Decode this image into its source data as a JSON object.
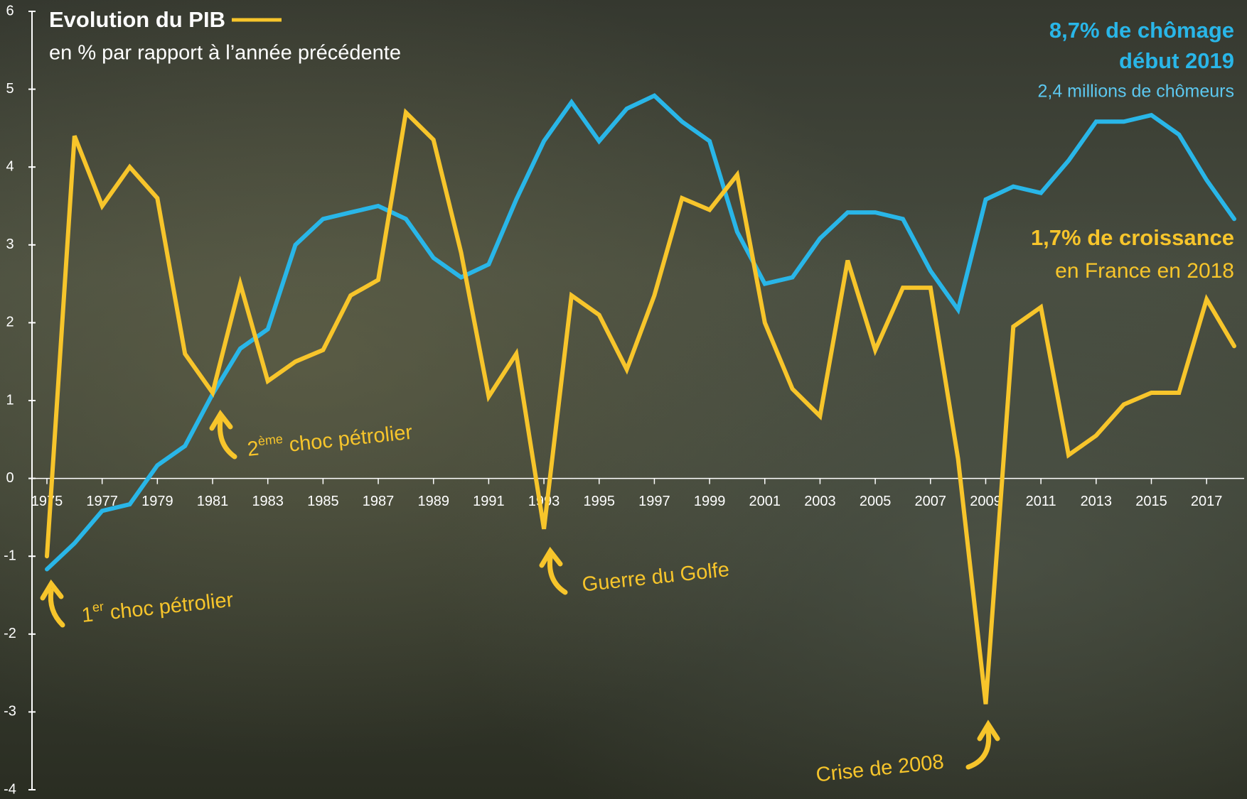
{
  "chart_data": {
    "type": "line",
    "title": "Evolution du PIB",
    "subtitle": "en % par rapport à l’année précédente",
    "x": [
      1975,
      1976,
      1977,
      1978,
      1979,
      1980,
      1981,
      1982,
      1983,
      1984,
      1985,
      1986,
      1987,
      1988,
      1989,
      1990,
      1991,
      1992,
      1993,
      1994,
      1995,
      1996,
      1997,
      1998,
      1999,
      2000,
      2001,
      2002,
      2003,
      2004,
      2005,
      2006,
      2007,
      2008,
      2009,
      2010,
      2011,
      2012,
      2013,
      2014,
      2015,
      2016,
      2017,
      2018
    ],
    "xlim": [
      1975,
      2018
    ],
    "xticks": [
      1975,
      1977,
      1979,
      1981,
      1983,
      1985,
      1987,
      1989,
      1991,
      1993,
      1995,
      1997,
      1999,
      2001,
      2003,
      2005,
      2007,
      2009,
      2011,
      2013,
      2015,
      2017
    ],
    "ylim": [
      -4,
      6
    ],
    "yticks": [
      -4,
      -3,
      -2,
      -1,
      0,
      1,
      2,
      3,
      4,
      5,
      6
    ],
    "y2lim": [
      0,
      12
    ],
    "series": [
      {
        "color": "#f7c52b",
        "values": [
          -1.0,
          4.4,
          3.5,
          4.0,
          3.6,
          1.6,
          1.1,
          2.5,
          1.25,
          1.5,
          1.65,
          2.35,
          2.55,
          4.7,
          4.35,
          2.9,
          1.05,
          1.6,
          -0.65,
          2.35,
          2.1,
          1.4,
          2.35,
          3.6,
          3.45,
          3.9,
          2.0,
          1.15,
          0.8,
          2.8,
          1.65,
          2.45,
          2.45,
          0.25,
          -2.9,
          1.95,
          2.2,
          0.3,
          0.55,
          0.95,
          1.1,
          1.1,
          2.3,
          1.7
        ]
      },
      {
        "color": "#29b6e8",
        "axis": "y2",
        "values": [
          3.4,
          3.8,
          4.3,
          4.4,
          5.0,
          5.3,
          6.1,
          6.8,
          7.1,
          8.4,
          8.8,
          8.9,
          9.0,
          8.8,
          8.2,
          7.9,
          8.1,
          9.1,
          10.0,
          10.6,
          10.0,
          10.5,
          10.7,
          10.3,
          10.0,
          8.6,
          7.8,
          7.9,
          8.5,
          8.9,
          8.9,
          8.8,
          8.0,
          7.4,
          9.1,
          9.3,
          9.2,
          9.7,
          10.3,
          10.3,
          10.4,
          10.1,
          9.4,
          8.8
        ]
      }
    ],
    "annotations": [
      {
        "base": "1",
        "sup": "er",
        "text": " choc pétrolier"
      },
      {
        "base": "2",
        "sup": "ème",
        "text": " choc pétrolier"
      },
      {
        "text": "Guerre du Golfe"
      },
      {
        "text": "Crise de 2008"
      }
    ],
    "unemployment_note": [
      "8,7% de chômage",
      "début 2019",
      "2,4 millions de chômeurs"
    ],
    "growth_note": [
      "1,7% de croissance",
      "en France en 2018"
    ]
  }
}
